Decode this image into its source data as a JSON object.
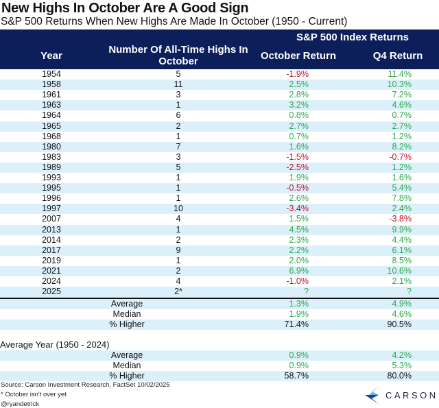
{
  "title": "New Highs In October Are A Good Sign",
  "subtitle": "S&P 500 Returns When New Highs Are Made In October (1950 - Current)",
  "header": {
    "group": "S&P 500 Index Returns",
    "year": "Year",
    "count_line1": "Number Of All-Time Highs In",
    "count_line2": "October",
    "oct": "October Return",
    "q4": "Q4 Return"
  },
  "colors": {
    "header_bg": "#0c1f5a",
    "stripe": "#dcf0fb",
    "positive": "#2aa84a",
    "negative": "#b8132a"
  },
  "rows": [
    {
      "year": "1954",
      "count": "5",
      "oct": "-1.9%",
      "q4": "11.4%"
    },
    {
      "year": "1958",
      "count": "11",
      "oct": "2.5%",
      "q4": "10.3%"
    },
    {
      "year": "1961",
      "count": "3",
      "oct": "2.8%",
      "q4": "7.2%"
    },
    {
      "year": "1963",
      "count": "1",
      "oct": "3.2%",
      "q4": "4.6%"
    },
    {
      "year": "1964",
      "count": "6",
      "oct": "0.8%",
      "q4": "0.7%"
    },
    {
      "year": "1965",
      "count": "2",
      "oct": "2.7%",
      "q4": "2.7%"
    },
    {
      "year": "1968",
      "count": "1",
      "oct": "0.7%",
      "q4": "1.2%"
    },
    {
      "year": "1980",
      "count": "7",
      "oct": "1.6%",
      "q4": "8.2%"
    },
    {
      "year": "1983",
      "count": "3",
      "oct": "-1.5%",
      "q4": "-0.7%"
    },
    {
      "year": "1989",
      "count": "5",
      "oct": "-2.5%",
      "q4": "1.2%"
    },
    {
      "year": "1993",
      "count": "1",
      "oct": "1.9%",
      "q4": "1.6%"
    },
    {
      "year": "1995",
      "count": "1",
      "oct": "-0.5%",
      "q4": "5.4%"
    },
    {
      "year": "1996",
      "count": "1",
      "oct": "2.6%",
      "q4": "7.8%"
    },
    {
      "year": "1997",
      "count": "10",
      "oct": "-3.4%",
      "q4": "2.4%"
    },
    {
      "year": "2007",
      "count": "4",
      "oct": "1.5%",
      "q4": "-3.8%"
    },
    {
      "year": "2013",
      "count": "1",
      "oct": "4.5%",
      "q4": "9.9%"
    },
    {
      "year": "2014",
      "count": "2",
      "oct": "2.3%",
      "q4": "4.4%"
    },
    {
      "year": "2017",
      "count": "9",
      "oct": "2.2%",
      "q4": "6.1%"
    },
    {
      "year": "2019",
      "count": "1",
      "oct": "2.0%",
      "q4": "8.5%"
    },
    {
      "year": "2021",
      "count": "2",
      "oct": "6.9%",
      "q4": "10.6%"
    },
    {
      "year": "2024",
      "count": "4",
      "oct": "-1.0%",
      "q4": "2.1%"
    },
    {
      "year": "2025",
      "count": "2*",
      "oct": "?",
      "q4": "?"
    }
  ],
  "summary": [
    {
      "label": "Average",
      "oct": "1.3%",
      "q4": "4.9%",
      "tone": "pos"
    },
    {
      "label": "Median",
      "oct": "1.9%",
      "q4": "4.6%",
      "tone": "pos"
    },
    {
      "label": "% Higher",
      "oct": "71.4%",
      "q4": "90.5%",
      "tone": "neu"
    }
  ],
  "avg_year_title": "Average Year (1950 - 2024)",
  "avg_year": [
    {
      "label": "Average",
      "oct": "0.9%",
      "q4": "4.2%",
      "tone": "pos"
    },
    {
      "label": "Median",
      "oct": "0.9%",
      "q4": "5.3%",
      "tone": "pos"
    },
    {
      "label": "% Higher",
      "oct": "58.7%",
      "q4": "80.0%",
      "tone": "neu"
    }
  ],
  "footer": {
    "source": "Source: Carson Investment Research, FactSet 10/02/2025",
    "note": "* October isn't over yet",
    "handle": "@ryandetrick"
  },
  "logo": {
    "text": "CARSON",
    "icon": "carson-chevron-logo"
  }
}
